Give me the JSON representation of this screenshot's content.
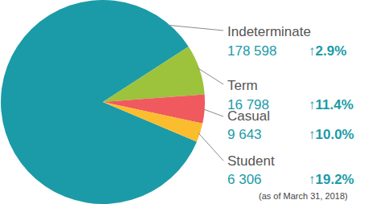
{
  "chart_data": {
    "type": "pie",
    "categories": [
      "Indeterminate",
      "Term",
      "Casual",
      "Student"
    ],
    "values": [
      178598,
      16798,
      9643,
      6306
    ],
    "value_labels": [
      "178 598",
      "16 798",
      "9 643",
      "6 306"
    ],
    "colors": [
      "#1b9ba7",
      "#9dc23c",
      "#f0595e",
      "#fbbd2e"
    ],
    "changes": [
      2.9,
      11.4,
      10.0,
      19.2
    ],
    "change_labels": [
      "↑2.9%",
      "↑11.4%",
      "↑10.0%",
      "↑19.2%"
    ],
    "note": "(as of March 31, 2018)",
    "data_labels": true
  }
}
